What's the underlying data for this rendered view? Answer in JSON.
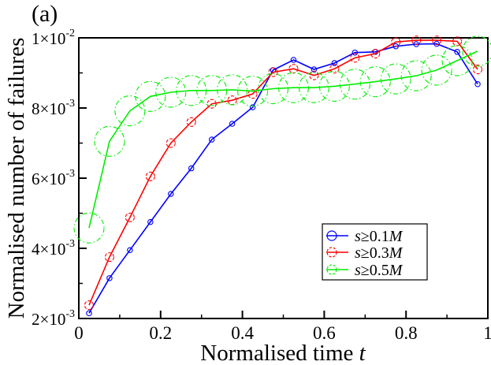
{
  "panel_label": "(a)",
  "chart_data": {
    "type": "line",
    "title": "",
    "xlabel": "Normalised time",
    "xlabel_var": "t",
    "ylabel": "Normalised number of failures",
    "xlim": [
      0,
      1
    ],
    "ylim": [
      0.002,
      0.01
    ],
    "x_ticks": [
      0,
      0.2,
      0.4,
      0.6,
      0.8,
      1
    ],
    "x_tick_labels": [
      "0",
      "0.2",
      "0.4",
      "0.6",
      "0.8",
      "1"
    ],
    "y_ticks": [
      0.002,
      0.004,
      0.006,
      0.008,
      0.01
    ],
    "y_tick_labels": [
      {
        "mantissa": "2×10",
        "exp": "-3"
      },
      {
        "mantissa": "4×10",
        "exp": "-3"
      },
      {
        "mantissa": "6×10",
        "exp": "-3"
      },
      {
        "mantissa": "8×10",
        "exp": "-3"
      },
      {
        "mantissa": "1×10",
        "exp": "-2"
      }
    ],
    "grid": false,
    "legend_position": "right-middle",
    "x": [
      0.025,
      0.075,
      0.125,
      0.175,
      0.225,
      0.275,
      0.325,
      0.375,
      0.425,
      0.475,
      0.525,
      0.575,
      0.625,
      0.675,
      0.725,
      0.775,
      0.825,
      0.875,
      0.925,
      0.975
    ],
    "series": [
      {
        "name": "s≥0.1M",
        "legend_prefix": "s",
        "legend_op": "≥0.1",
        "legend_suffix": "M",
        "color": "#0000ff",
        "line_style": "solid",
        "values": [
          0.00215,
          0.00315,
          0.00395,
          0.00475,
          0.00555,
          0.00628,
          0.0071,
          0.00755,
          0.00802,
          0.00908,
          0.00937,
          0.0091,
          0.00928,
          0.00958,
          0.0096,
          0.00976,
          0.00982,
          0.00983,
          0.0096,
          0.00868
        ]
      },
      {
        "name": "s≥0.3M",
        "legend_prefix": "s",
        "legend_op": "≥0.3",
        "legend_suffix": "M",
        "color": "#ff0000",
        "line_style": "solid",
        "values": [
          0.00238,
          0.00375,
          0.00488,
          0.00605,
          0.007,
          0.0076,
          0.00812,
          0.00822,
          0.0084,
          0.00902,
          0.00912,
          0.00893,
          0.00912,
          0.00943,
          0.00955,
          0.00988,
          0.00993,
          0.00993,
          0.0099,
          0.0091
        ]
      },
      {
        "name": "s≥0.5M",
        "legend_prefix": "s",
        "legend_op": "≥0.5",
        "legend_suffix": "M",
        "color": "#00ee00",
        "line_style": "solid",
        "values": [
          0.00458,
          0.00705,
          0.00792,
          0.00833,
          0.00845,
          0.0085,
          0.0085,
          0.00852,
          0.00848,
          0.00855,
          0.00858,
          0.00858,
          0.00862,
          0.00868,
          0.00875,
          0.00883,
          0.00892,
          0.00908,
          0.00935,
          0.00962
        ]
      }
    ]
  }
}
